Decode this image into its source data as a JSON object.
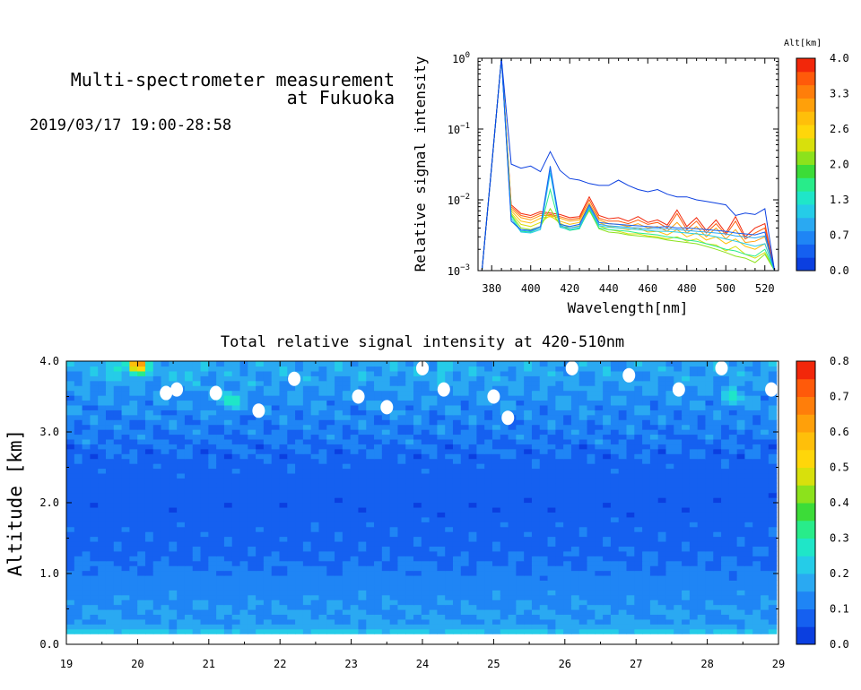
{
  "header": {
    "title_line1": "Multi-spectrometer measurement",
    "title_line2": "at Fukuoka",
    "subtitle": "2019/03/17 19:00-28:58"
  },
  "colormap": [
    "#0b3fe0",
    "#1560f0",
    "#1f85f5",
    "#2aa9f2",
    "#25cce8",
    "#1fe6c8",
    "#28ec8a",
    "#3cdc38",
    "#8ce21c",
    "#d8e00c",
    "#ffd60a",
    "#ffbf0a",
    "#ffa00a",
    "#ff7e0a",
    "#ff5a0a",
    "#f2270a"
  ],
  "chart_data": [
    {
      "type": "line",
      "xlabel": "Wavelength[nm]",
      "ylabel": "Relative signal intensity",
      "xlim": [
        373,
        527
      ],
      "ylim_log": [
        -3,
        0
      ],
      "yscale": "log",
      "xticks": [
        380,
        400,
        420,
        440,
        460,
        480,
        500,
        520
      ],
      "xtick_labels": [
        "380",
        "400",
        "420",
        "440",
        "460",
        "480",
        "500",
        "520"
      ],
      "yticks": [
        -3,
        -2,
        -1,
        0
      ],
      "ytick_bases": [
        "10",
        "10",
        "10",
        "10"
      ],
      "ytick_exps": [
        "−3",
        "−2",
        "−1",
        "0"
      ],
      "wavelengths": [
        375,
        380,
        385,
        390,
        395,
        400,
        405,
        410,
        415,
        420,
        425,
        430,
        435,
        440,
        445,
        450,
        455,
        460,
        465,
        470,
        475,
        480,
        485,
        490,
        495,
        500,
        505,
        510,
        515,
        520,
        525
      ],
      "colorbar": {
        "title": "Alt[km]",
        "min": 0.0,
        "max": 4.0,
        "tick_labels": [
          "0.0",
          "0.7",
          "1.3",
          "2.0",
          "2.6",
          "3.3",
          "4.0"
        ]
      },
      "series": [
        {
          "alt": 0.1,
          "values": [
            0.001,
            0.03,
            1.0,
            0.032,
            0.028,
            0.03,
            0.025,
            0.048,
            0.026,
            0.02,
            0.019,
            0.017,
            0.016,
            0.016,
            0.019,
            0.016,
            0.014,
            0.013,
            0.014,
            0.012,
            0.011,
            0.011,
            0.01,
            0.0095,
            0.009,
            0.0085,
            0.006,
            0.0065,
            0.0062,
            0.0075,
            0.001
          ]
        },
        {
          "alt": 0.4,
          "values": [
            0.001,
            0.03,
            1.0,
            0.005,
            0.0038,
            0.0037,
            0.0042,
            0.03,
            0.0045,
            0.0042,
            0.0045,
            0.0085,
            0.0048,
            0.0046,
            0.0045,
            0.0044,
            0.0043,
            0.0042,
            0.0041,
            0.0042,
            0.004,
            0.004,
            0.0039,
            0.0038,
            0.0037,
            0.0036,
            0.0034,
            0.0033,
            0.0032,
            0.0035,
            0.001
          ]
        },
        {
          "alt": 0.8,
          "values": [
            0.001,
            0.03,
            1.0,
            0.005,
            0.0037,
            0.0036,
            0.004,
            0.027,
            0.0043,
            0.004,
            0.0042,
            0.008,
            0.0045,
            0.0043,
            0.0042,
            0.0041,
            0.004,
            0.0039,
            0.0039,
            0.0039,
            0.0038,
            0.0037,
            0.0036,
            0.0035,
            0.0034,
            0.0033,
            0.0031,
            0.003,
            0.0029,
            0.0031,
            0.001
          ]
        },
        {
          "alt": 1.2,
          "values": [
            0.001,
            0.03,
            1.0,
            0.0055,
            0.0035,
            0.0034,
            0.0038,
            0.024,
            0.0041,
            0.0038,
            0.004,
            0.0078,
            0.0043,
            0.0041,
            0.004,
            0.0039,
            0.0038,
            0.0037,
            0.0036,
            0.0036,
            0.0035,
            0.0034,
            0.0033,
            0.0032,
            0.003,
            0.0028,
            0.0026,
            0.0024,
            0.0022,
            0.0024,
            0.001
          ]
        },
        {
          "alt": 1.6,
          "values": [
            0.001,
            0.03,
            1.0,
            0.006,
            0.0036,
            0.0035,
            0.004,
            0.014,
            0.0042,
            0.0037,
            0.0039,
            0.0075,
            0.004,
            0.0038,
            0.0037,
            0.0036,
            0.0034,
            0.0033,
            0.0032,
            0.003,
            0.0029,
            0.0027,
            0.0026,
            0.0024,
            0.0022,
            0.002,
            0.0019,
            0.0017,
            0.0016,
            0.002,
            0.001
          ]
        },
        {
          "alt": 2.0,
          "values": [
            0.001,
            0.03,
            1.0,
            0.0062,
            0.004,
            0.0038,
            0.0042,
            0.0075,
            0.0044,
            0.0038,
            0.004,
            0.0072,
            0.0039,
            0.0035,
            0.0034,
            0.0032,
            0.0031,
            0.003,
            0.0029,
            0.0027,
            0.0026,
            0.0025,
            0.0024,
            0.0022,
            0.002,
            0.0018,
            0.0016,
            0.0015,
            0.0013,
            0.0017,
            0.001
          ]
        },
        {
          "alt": 2.4,
          "values": [
            0.001,
            0.03,
            1.0,
            0.0065,
            0.0045,
            0.0042,
            0.0048,
            0.006,
            0.0047,
            0.004,
            0.0043,
            0.007,
            0.0043,
            0.0038,
            0.0036,
            0.0033,
            0.0033,
            0.0031,
            0.003,
            0.0028,
            0.003,
            0.0026,
            0.0028,
            0.0024,
            0.0023,
            0.0019,
            0.0022,
            0.0017,
            0.0015,
            0.0018,
            0.001
          ]
        },
        {
          "alt": 2.8,
          "values": [
            0.001,
            0.03,
            1.0,
            0.007,
            0.005,
            0.0047,
            0.0055,
            0.0058,
            0.005,
            0.0045,
            0.0048,
            0.0085,
            0.0048,
            0.0042,
            0.004,
            0.0038,
            0.004,
            0.0035,
            0.0036,
            0.0032,
            0.0038,
            0.003,
            0.0034,
            0.0027,
            0.003,
            0.0024,
            0.0028,
            0.0022,
            0.002,
            0.0024,
            0.001
          ]
        },
        {
          "alt": 3.2,
          "values": [
            0.001,
            0.03,
            1.0,
            0.0075,
            0.0056,
            0.0052,
            0.006,
            0.006,
            0.0055,
            0.005,
            0.0052,
            0.009,
            0.0052,
            0.0046,
            0.0045,
            0.0042,
            0.0046,
            0.004,
            0.0042,
            0.0036,
            0.0048,
            0.0034,
            0.0042,
            0.003,
            0.004,
            0.0028,
            0.0038,
            0.0025,
            0.0026,
            0.003,
            0.001
          ]
        },
        {
          "alt": 3.6,
          "values": [
            0.001,
            0.03,
            1.0,
            0.008,
            0.006,
            0.0056,
            0.0064,
            0.0062,
            0.0058,
            0.0053,
            0.0055,
            0.01,
            0.0055,
            0.005,
            0.005,
            0.0046,
            0.0052,
            0.0045,
            0.0048,
            0.004,
            0.0064,
            0.0038,
            0.005,
            0.0034,
            0.0046,
            0.0032,
            0.005,
            0.0028,
            0.0034,
            0.004,
            0.001
          ]
        },
        {
          "alt": 3.9,
          "values": [
            0.001,
            0.03,
            1.0,
            0.0085,
            0.0064,
            0.006,
            0.0068,
            0.0065,
            0.0062,
            0.0056,
            0.0058,
            0.011,
            0.006,
            0.0054,
            0.0056,
            0.005,
            0.0058,
            0.0048,
            0.0052,
            0.0044,
            0.0072,
            0.0042,
            0.0056,
            0.0037,
            0.0052,
            0.0034,
            0.0058,
            0.003,
            0.004,
            0.0046,
            0.001
          ]
        }
      ]
    },
    {
      "type": "heatmap",
      "title": "Total relative signal intensity at 420-510nm",
      "xlabel": "",
      "ylabel": "Altitude [km]",
      "xlim": [
        19,
        29
      ],
      "ylim": [
        0.0,
        4.0
      ],
      "xticks": [
        19,
        20,
        21,
        22,
        23,
        24,
        25,
        26,
        27,
        28,
        29
      ],
      "xtick_labels": [
        "19",
        "20",
        "21",
        "22",
        "23",
        "24",
        "25",
        "26",
        "27",
        "28",
        "29"
      ],
      "yticks": [
        0,
        1,
        2,
        3,
        4
      ],
      "ytick_labels": [
        "0.0",
        "1.0",
        "2.0",
        "3.0",
        "4.0"
      ],
      "data_xlim": [
        19,
        28.97
      ],
      "data_ylim": [
        0.15,
        4.0
      ],
      "colorbar": {
        "min": 0.0,
        "max": 0.8,
        "tick_labels": [
          "0.0",
          "0.1",
          "0.2",
          "0.3",
          "0.4",
          "0.5",
          "0.6",
          "0.7",
          "0.8"
        ]
      },
      "profile_by_altitude": {
        "altitude_km": [
          0.15,
          0.2,
          0.3,
          0.5,
          0.8,
          1.0,
          1.3,
          1.6,
          2.0,
          2.5,
          3.0,
          3.3,
          3.6,
          3.9
        ],
        "value": [
          0.24,
          0.19,
          0.15,
          0.15,
          0.13,
          0.11,
          0.09,
          0.08,
          0.07,
          0.08,
          0.11,
          0.13,
          0.15,
          0.17
        ]
      },
      "missing_patches": [
        {
          "x": 20.4,
          "y": 3.55
        },
        {
          "x": 20.55,
          "y": 3.6
        },
        {
          "x": 21.1,
          "y": 3.55
        },
        {
          "x": 21.7,
          "y": 3.3
        },
        {
          "x": 22.2,
          "y": 3.75
        },
        {
          "x": 23.1,
          "y": 3.5
        },
        {
          "x": 23.5,
          "y": 3.35
        },
        {
          "x": 24.0,
          "y": 3.9
        },
        {
          "x": 24.3,
          "y": 3.6
        },
        {
          "x": 25.0,
          "y": 3.5
        },
        {
          "x": 25.2,
          "y": 3.2
        },
        {
          "x": 26.1,
          "y": 3.9
        },
        {
          "x": 26.9,
          "y": 3.8
        },
        {
          "x": 27.6,
          "y": 3.6
        },
        {
          "x": 28.2,
          "y": 3.9
        },
        {
          "x": 28.9,
          "y": 3.6
        }
      ],
      "hotspots": [
        {
          "x": 20.0,
          "y": 3.95,
          "value": 0.7
        },
        {
          "x": 19.65,
          "y": 3.9,
          "value": 0.3
        },
        {
          "x": 21.3,
          "y": 3.45,
          "value": 0.3
        },
        {
          "x": 20.7,
          "y": 3.85,
          "value": 0.25
        },
        {
          "x": 28.4,
          "y": 3.5,
          "value": 0.28
        },
        {
          "x": 24.3,
          "y": 3.9,
          "value": 0.24
        }
      ]
    }
  ]
}
